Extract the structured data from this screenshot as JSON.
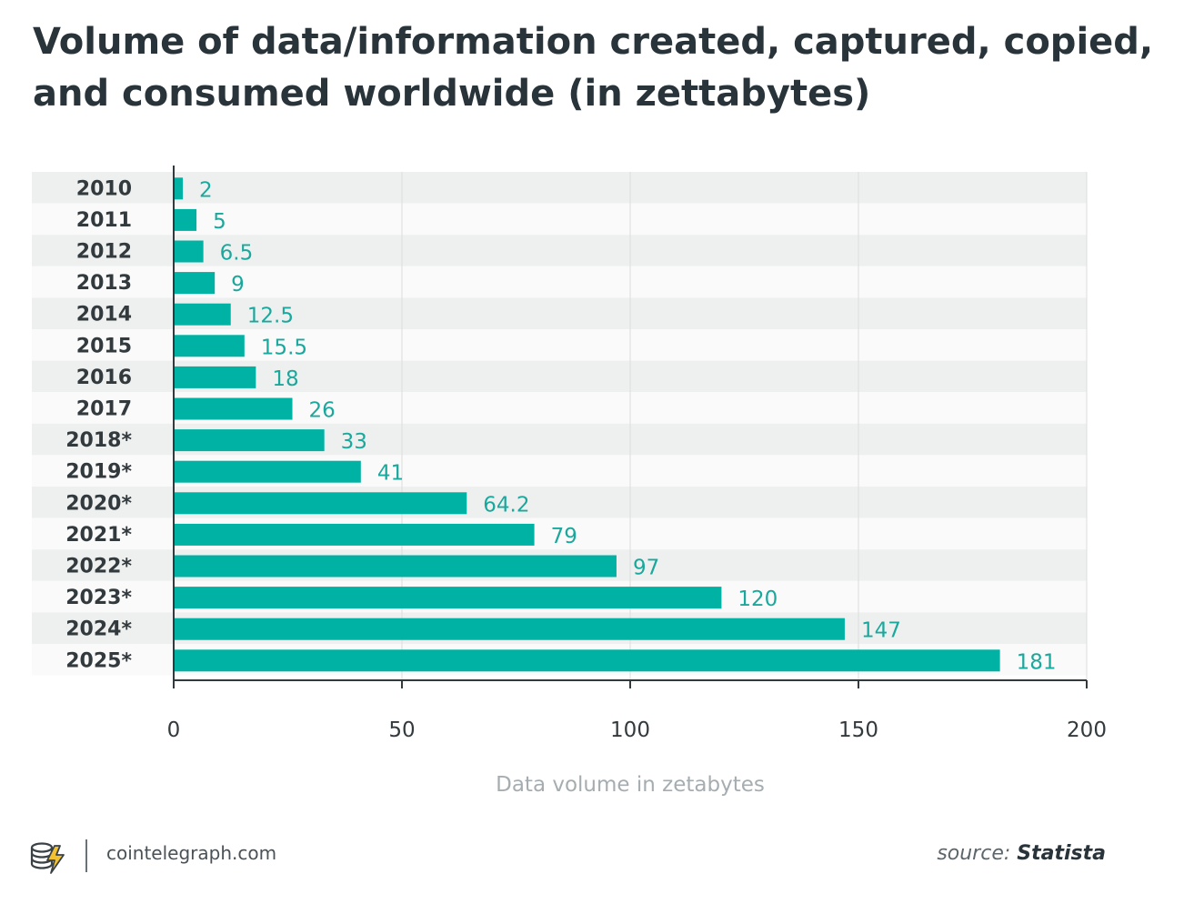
{
  "title": "Volume of data/information created, captured, copied, and consumed worldwide (in zettabytes)",
  "footer": {
    "site": "cointelegraph.com",
    "source_prefix": "source: ",
    "source_name": "Statista",
    "logo_icon": "cointelegraph-logo-icon"
  },
  "colors": {
    "bar": "#00b2a4",
    "value_label": "#1aa89d",
    "row_alt": "#eef0ef",
    "row_base": "#fafafa",
    "axis": "#333a3e",
    "grid": "#dcdcdc",
    "tick_label": "#333a3e",
    "axis_title": "#a6adb1"
  },
  "chart_data": {
    "type": "bar",
    "orientation": "horizontal",
    "title": "Volume of data/information created, captured, copied, and consumed worldwide (in zettabytes)",
    "categories": [
      "2010",
      "2011",
      "2012",
      "2013",
      "2014",
      "2015",
      "2016",
      "2017",
      "2018*",
      "2019*",
      "2020*",
      "2021*",
      "2022*",
      "2023*",
      "2024*",
      "2025*"
    ],
    "values": [
      2,
      5,
      6.5,
      9,
      12.5,
      15.5,
      18,
      26,
      33,
      41,
      64.2,
      79,
      97,
      120,
      147,
      181
    ],
    "value_labels": [
      "2",
      "5",
      "6.5",
      "9",
      "12.5",
      "15.5",
      "18",
      "26",
      "33",
      "41",
      "64.2",
      "79",
      "97",
      "120",
      "147",
      "181"
    ],
    "xlabel": "Data volume in zetabytes",
    "ylabel": "",
    "xlim": [
      0,
      200
    ],
    "xticks": [
      0,
      50,
      100,
      150,
      200
    ],
    "xtick_labels": [
      "0",
      "50",
      "100",
      "150",
      "200"
    ],
    "grid": true,
    "legend": "none"
  }
}
